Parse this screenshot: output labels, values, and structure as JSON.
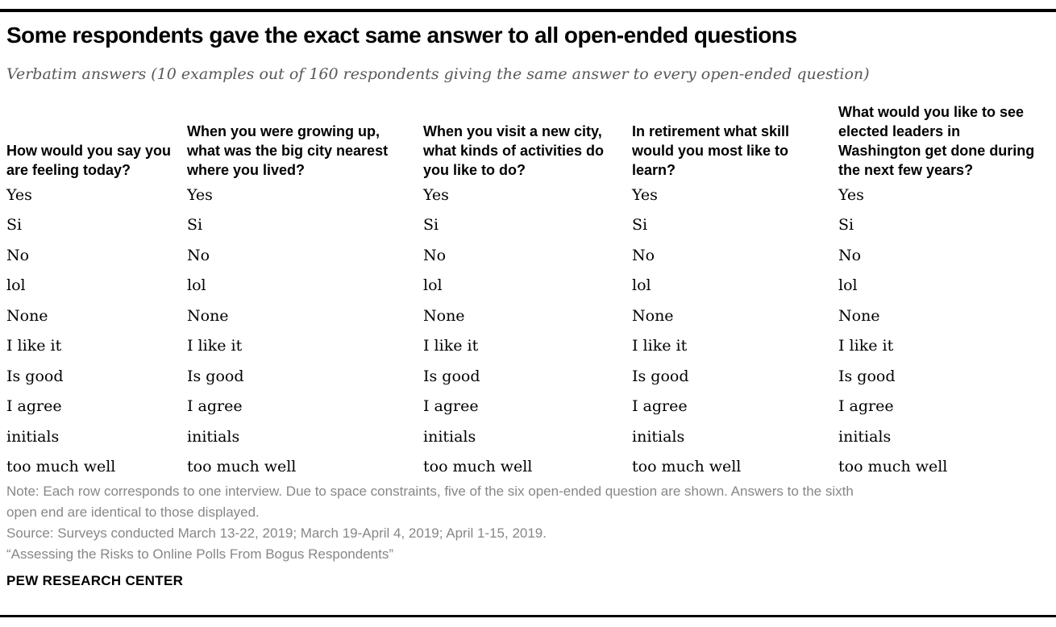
{
  "page": {
    "title": "Some respondents gave the exact same answer to all open-ended questions",
    "subtitle": "Verbatim answers (10 examples out of 160 respondents giving the same answer to every open-ended question)"
  },
  "table": {
    "columns": [
      {
        "lines": [
          "How would you say you",
          "are feeling today?"
        ]
      },
      {
        "lines": [
          "When you were growing up,",
          "what was the big city nearest",
          "where you lived?"
        ]
      },
      {
        "lines": [
          "When you visit a new city,",
          "what kinds of activities do",
          "you like to do?"
        ]
      },
      {
        "lines": [
          "In retirement what skill",
          "would you most like to",
          "learn?"
        ]
      },
      {
        "lines": [
          "What would you like to see",
          "elected leaders in",
          "Washington get done during",
          "the next few years?"
        ]
      }
    ],
    "rows": [
      [
        "Yes",
        "Yes",
        "Yes",
        "Yes",
        "Yes"
      ],
      [
        "Si",
        "Si",
        "Si",
        "Si",
        "Si"
      ],
      [
        "No",
        "No",
        "No",
        "No",
        "No"
      ],
      [
        "lol",
        "lol",
        "lol",
        "lol",
        "lol"
      ],
      [
        "None",
        "None",
        "None",
        "None",
        "None"
      ],
      [
        "I like it",
        "I like it",
        "I like it",
        "I like it",
        "I like it"
      ],
      [
        "Is good",
        "Is good",
        "Is good",
        "Is good",
        "Is good"
      ],
      [
        "I agree",
        "I agree",
        "I agree",
        "I agree",
        "I agree"
      ],
      [
        "initials",
        "initials",
        "initials",
        "initials",
        "initials"
      ],
      [
        "too much well",
        "too much well",
        "too much well",
        "too much well",
        "too much well"
      ]
    ]
  },
  "footer": {
    "note_lines": [
      "Note: Each row corresponds to one interview. Due to space constraints, five of the six open-ended question are shown. Answers to the sixth",
      "open end are identical to those displayed."
    ],
    "source": "Source: Surveys conducted March 13-22, 2019; March 19-April 4, 2019; April 1-15, 2019.",
    "report_title": "“Assessing the Risks to Online Polls From Bogus Respondents”",
    "brand": "PEW RESEARCH CENTER"
  },
  "chart_data": {
    "type": "table",
    "title": "Some respondents gave the exact same answer to all open-ended questions",
    "subtitle": "Verbatim answers (10 examples out of 160 respondents giving the same answer to every open-ended question)",
    "columns": [
      "How would you say you are feeling today?",
      "When you were growing up, what was the big city nearest where you lived?",
      "When you visit a new city, what kinds of activities do you like to do?",
      "In retirement what skill would you most like to learn?",
      "What would you like to see elected leaders in Washington get done during the next few years?"
    ],
    "rows": [
      [
        "Yes",
        "Yes",
        "Yes",
        "Yes",
        "Yes"
      ],
      [
        "Si",
        "Si",
        "Si",
        "Si",
        "Si"
      ],
      [
        "No",
        "No",
        "No",
        "No",
        "No"
      ],
      [
        "lol",
        "lol",
        "lol",
        "lol",
        "lol"
      ],
      [
        "None",
        "None",
        "None",
        "None",
        "None"
      ],
      [
        "I like it",
        "I like it",
        "I like it",
        "I like it",
        "I like it"
      ],
      [
        "Is good",
        "Is good",
        "Is good",
        "Is good",
        "Is good"
      ],
      [
        "I agree",
        "I agree",
        "I agree",
        "I agree",
        "I agree"
      ],
      [
        "initials",
        "initials",
        "initials",
        "initials",
        "initials"
      ],
      [
        "too much well",
        "too much well",
        "too much well",
        "too much well",
        "too much well"
      ]
    ],
    "note": "Note: Each row corresponds to one interview. Due to space constraints, five of the six open-ended question are shown. Answers to the sixth open end are identical to those displayed.",
    "source": "Source: Surveys conducted March 13-22, 2019; March 19-April 4, 2019; April 1-15, 2019.",
    "colors": {
      "text": "#000000",
      "subtitle": "#58585a",
      "note": "#878787",
      "rule": "#000000"
    }
  }
}
